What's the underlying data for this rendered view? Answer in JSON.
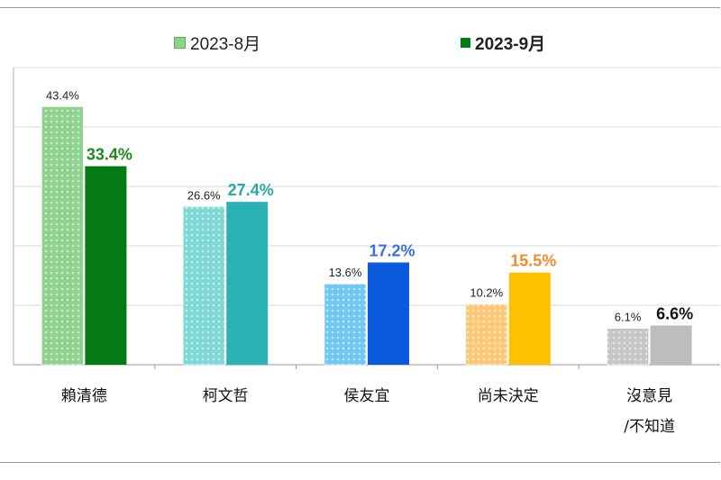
{
  "chart_data": {
    "type": "bar",
    "title": "",
    "xlabel": "",
    "ylabel": "",
    "ylim": [
      0,
      50
    ],
    "grid": true,
    "legend_position": "top",
    "categories": [
      [
        "賴清德"
      ],
      [
        "柯文哲"
      ],
      [
        "侯友宜"
      ],
      [
        "尚未決定"
      ],
      [
        "沒意見",
        "/不知道"
      ]
    ],
    "series": [
      {
        "name": "2023-8月",
        "values": [
          43.4,
          26.6,
          13.6,
          10.2,
          6.1
        ],
        "labels": [
          "43.4%",
          "26.6%",
          "13.6%",
          "10.2%",
          "6.1%"
        ],
        "colors": [
          "#8fd18f",
          "#7ed9d5",
          "#70c7f0",
          "#fcc878",
          "#c6c6c6"
        ]
      },
      {
        "name": "2023-9月",
        "values": [
          33.4,
          27.4,
          17.2,
          15.5,
          6.6
        ],
        "labels": [
          "33.4%",
          "27.4%",
          "17.2%",
          "15.5%",
          "6.6%"
        ],
        "colors": [
          "#047a15",
          "#2bb3b4",
          "#0a5adc",
          "#ffc000",
          "#bdbdbd"
        ],
        "label_colors": [
          "#1e8a1e",
          "#2aa8a8",
          "#3b6fe0",
          "#f08a2a",
          "#111111"
        ]
      }
    ],
    "legend_colors": [
      "#8fd18f",
      "#047a15"
    ]
  }
}
